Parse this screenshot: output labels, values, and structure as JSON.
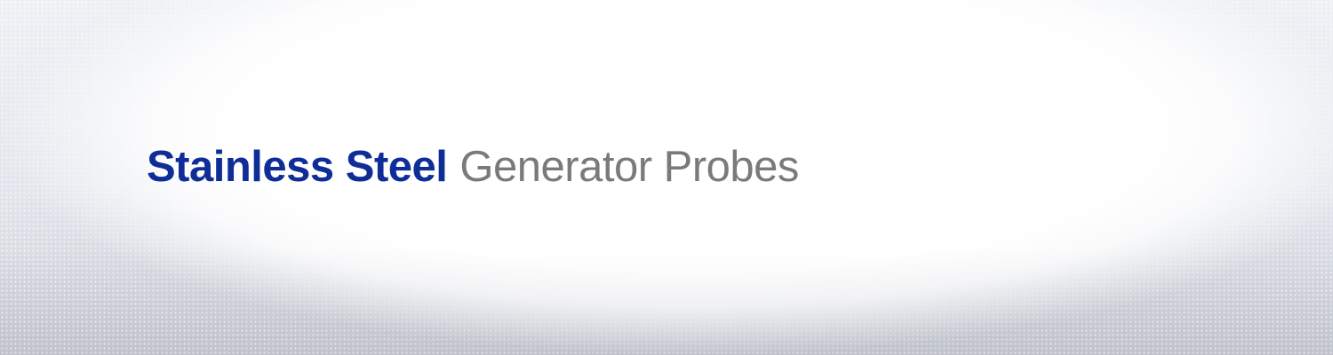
{
  "banner": {
    "title_strong": "Stainless Steel",
    "title_light": "Generator Probes"
  },
  "colors": {
    "title_strong": "#0f2d97",
    "title_light": "#7a7a7a",
    "background_center": "#ffffff",
    "background_edge": "#c9ccd4"
  }
}
